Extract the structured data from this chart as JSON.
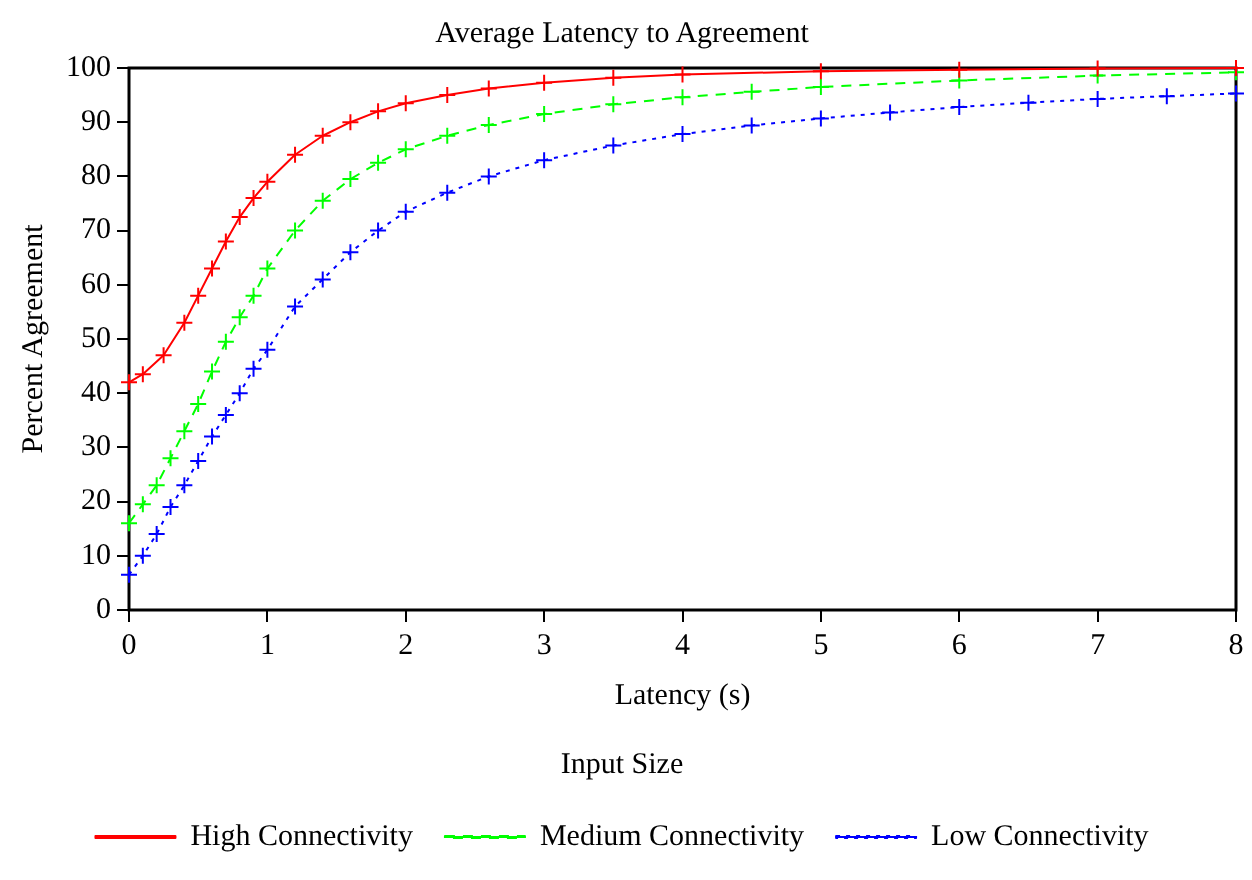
{
  "chart_data": {
    "type": "line",
    "title": "Average Latency to Agreement",
    "xlabel": "Latency (s)",
    "ylabel": "Percent Agreement",
    "legend_title": "Input Size",
    "xlim": [
      0,
      8
    ],
    "xticks": [
      0,
      1,
      2,
      3,
      4,
      5,
      6,
      7,
      8
    ],
    "ylim": [
      0,
      100
    ],
    "yticks": [
      0,
      10,
      20,
      30,
      40,
      50,
      60,
      70,
      80,
      90,
      100
    ],
    "grid": false,
    "legend": "bottom",
    "series": [
      {
        "name": "High Connectivity",
        "color": "#ff0000",
        "marker": "cross",
        "line_style": "solid",
        "x": [
          0,
          0.1,
          0.25,
          0.4,
          0.5,
          0.6,
          0.7,
          0.8,
          0.9,
          1.0,
          1.2,
          1.4,
          1.6,
          1.8,
          2.0,
          2.3,
          2.6,
          3.0,
          3.5,
          4,
          5,
          6,
          7,
          8
        ],
        "values": [
          42,
          43.5,
          47,
          53,
          58,
          63,
          68,
          72.5,
          76,
          79,
          84,
          87.5,
          90,
          92,
          93.5,
          95,
          96.2,
          97.3,
          98.2,
          98.8,
          99.4,
          99.7,
          99.9,
          100
        ]
      },
      {
        "name": "Medium Connectivity",
        "color": "#00ff00",
        "marker": "cross",
        "line_style": "dashed",
        "x": [
          0,
          0.1,
          0.2,
          0.3,
          0.4,
          0.5,
          0.6,
          0.7,
          0.8,
          0.9,
          1.0,
          1.2,
          1.4,
          1.6,
          1.8,
          2.0,
          2.3,
          2.6,
          3.0,
          3.5,
          4,
          4.5,
          5,
          6,
          7,
          8
        ],
        "values": [
          16,
          19.5,
          23,
          28,
          33,
          38,
          44,
          49.5,
          54,
          58,
          63,
          70,
          75.5,
          79.5,
          82.5,
          85,
          87.5,
          89.5,
          91.5,
          93.3,
          94.6,
          95.6,
          96.5,
          97.7,
          98.6,
          99.2
        ]
      },
      {
        "name": "Low Connectivity",
        "color": "#0000ff",
        "marker": "cross",
        "line_style": "dotted",
        "x": [
          0,
          0.1,
          0.2,
          0.3,
          0.4,
          0.5,
          0.6,
          0.7,
          0.8,
          0.9,
          1.0,
          1.2,
          1.4,
          1.6,
          1.8,
          2.0,
          2.3,
          2.6,
          3.0,
          3.5,
          4,
          4.5,
          5,
          5.5,
          6,
          6.5,
          7,
          7.5,
          8
        ],
        "values": [
          6.5,
          10,
          14,
          19,
          23,
          27.5,
          32,
          36,
          40,
          44.5,
          48,
          56,
          61,
          66,
          70,
          73.5,
          77,
          80,
          83,
          85.7,
          87.8,
          89.4,
          90.7,
          91.8,
          92.8,
          93.6,
          94.3,
          94.8,
          95.3
        ]
      }
    ]
  }
}
